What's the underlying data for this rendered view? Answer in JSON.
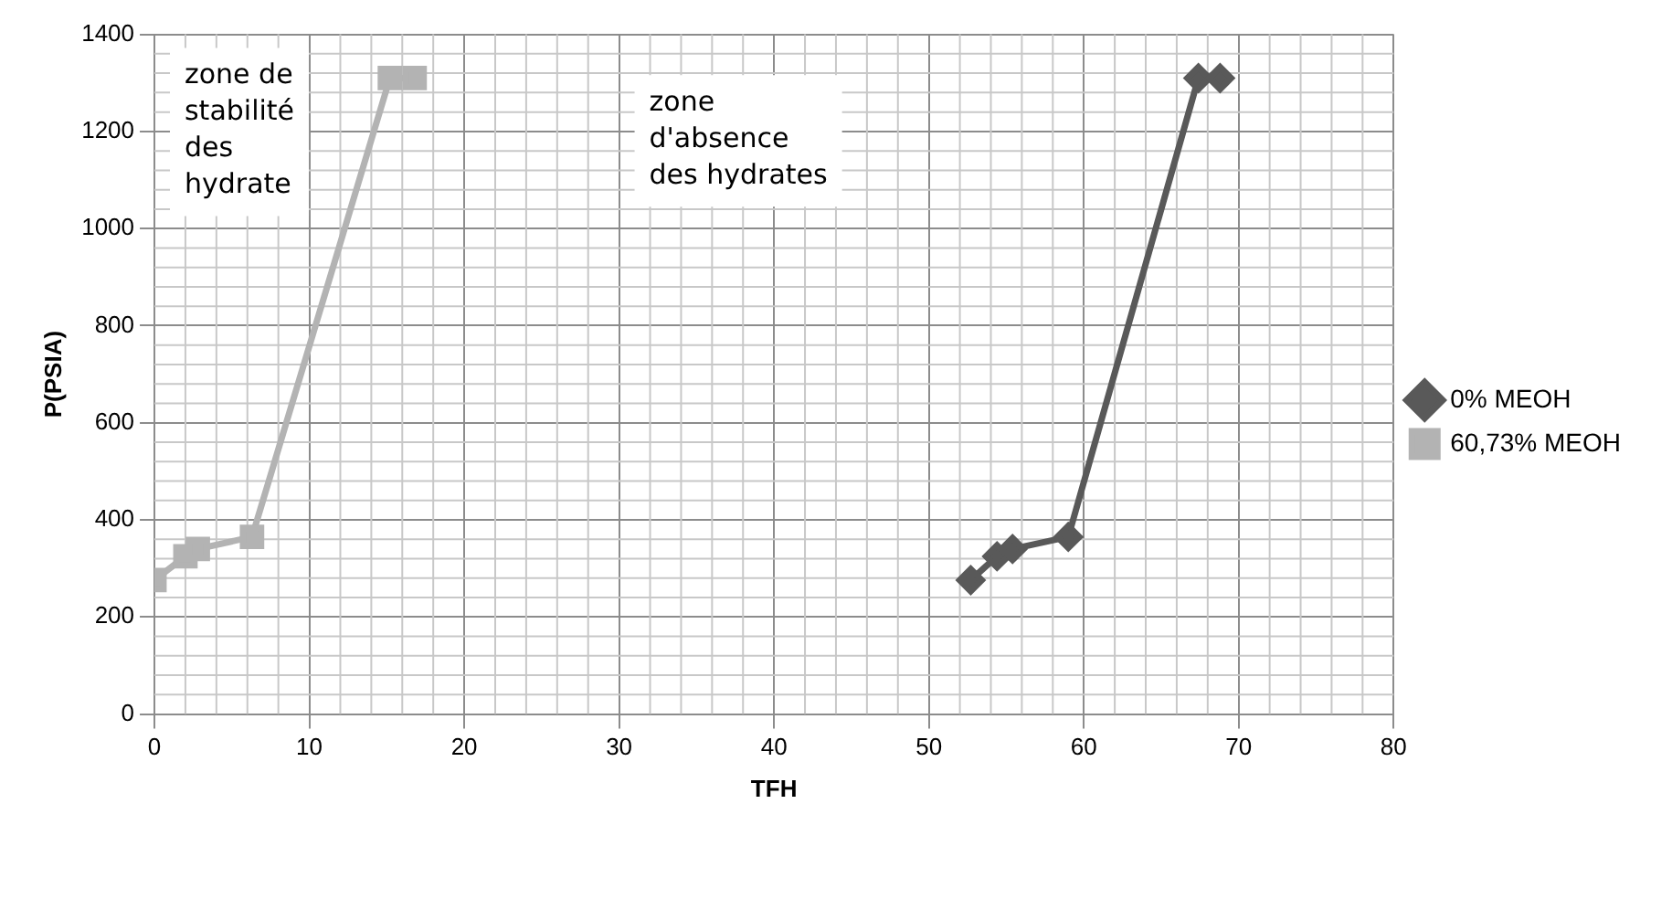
{
  "chart_data": {
    "type": "line",
    "xlabel": "TFH",
    "ylabel": "P(PSIA)",
    "xlim": [
      0,
      80
    ],
    "xticks": [
      0,
      10,
      20,
      30,
      40,
      50,
      60,
      70,
      80
    ],
    "ylim": [
      0,
      1400
    ],
    "yticks": [
      0,
      200,
      400,
      600,
      800,
      1000,
      1200,
      1400
    ],
    "grid": true,
    "legend": "right",
    "line_style": "solid",
    "series": [
      {
        "name": "0% MEOH",
        "color": "#595959",
        "marker": "diamond",
        "x": [
          52.7,
          54.4,
          55.4,
          59.0,
          67.4,
          68.8
        ],
        "values": [
          276,
          325,
          340,
          365,
          1310,
          1310
        ]
      },
      {
        "name": "60,73% MEOH",
        "color": "#b3b3b3",
        "marker": "square",
        "x": [
          0,
          2.0,
          2.8,
          6.3,
          15.2,
          16.8
        ],
        "values": [
          276,
          325,
          340,
          365,
          1310,
          1310
        ]
      }
    ],
    "annotations": [
      "zone de\nstabilité\ndes\nhydrate",
      "zone\nd'absence\ndes hydrates"
    ]
  }
}
